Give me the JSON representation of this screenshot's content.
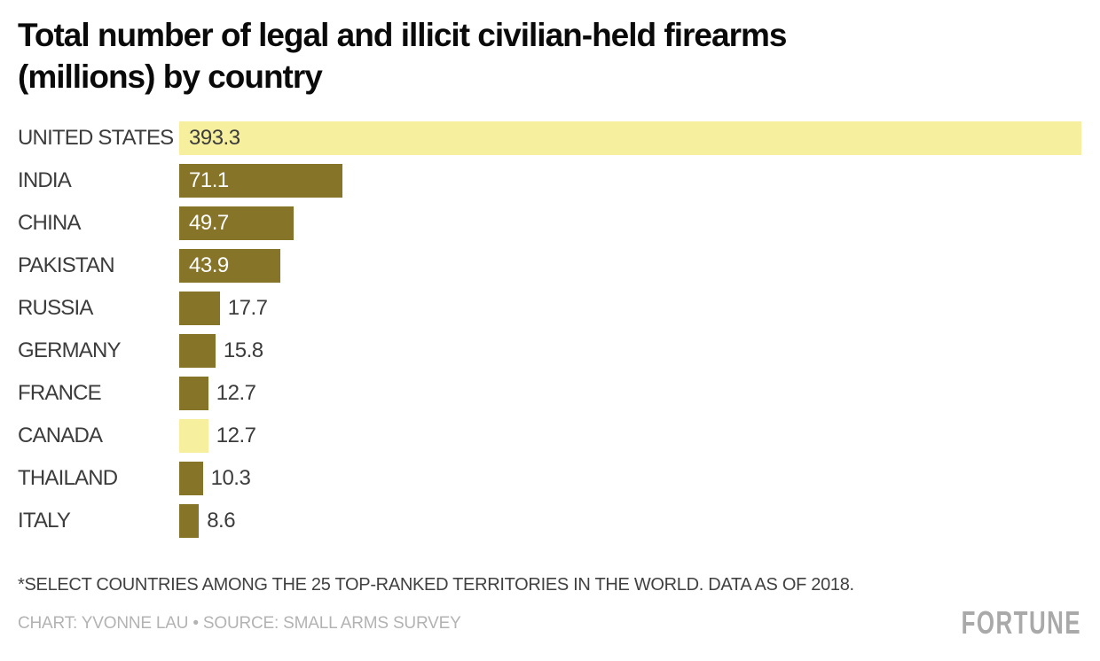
{
  "title": {
    "lines": [
      "Total number of legal and illicit civilian-held firearms",
      "(millions) by country"
    ]
  },
  "chart_data": {
    "type": "bar",
    "orientation": "horizontal",
    "title": "Total number of legal and illicit civilian-held firearms (millions) by country",
    "categories": [
      "UNITED STATES",
      "INDIA",
      "CHINA",
      "PAKISTAN",
      "RUSSIA",
      "GERMANY",
      "FRANCE",
      "CANADA",
      "THAILAND",
      "ITALY"
    ],
    "values": [
      393.3,
      71.1,
      49.7,
      43.9,
      17.7,
      15.8,
      12.7,
      12.7,
      10.3,
      8.6
    ],
    "value_labels": [
      "393.3",
      "71.1",
      "49.7",
      "43.9",
      "17.7",
      "15.8",
      "12.7",
      "12.7",
      "10.3",
      "8.6"
    ],
    "highlighted": [
      "UNITED STATES",
      "CANADA"
    ],
    "xlim": [
      0,
      393.3
    ],
    "grid": false,
    "legend": false,
    "colors": {
      "bar": "#867429",
      "bar_highlight": "#F6F09E",
      "value_inside": "#FFFFFF",
      "value_on_highlight": "#3C3C3C",
      "value_outside": "#3C3C3C"
    }
  },
  "footnote": "*SELECT COUNTRIES AMONG THE 25 TOP-RANKED TERRITORIES IN THE WORLD. DATA AS OF 2018.",
  "credit": "CHART: YVONNE LAU • SOURCE: SMALL ARMS SURVEY",
  "brand": "FORTUNE"
}
